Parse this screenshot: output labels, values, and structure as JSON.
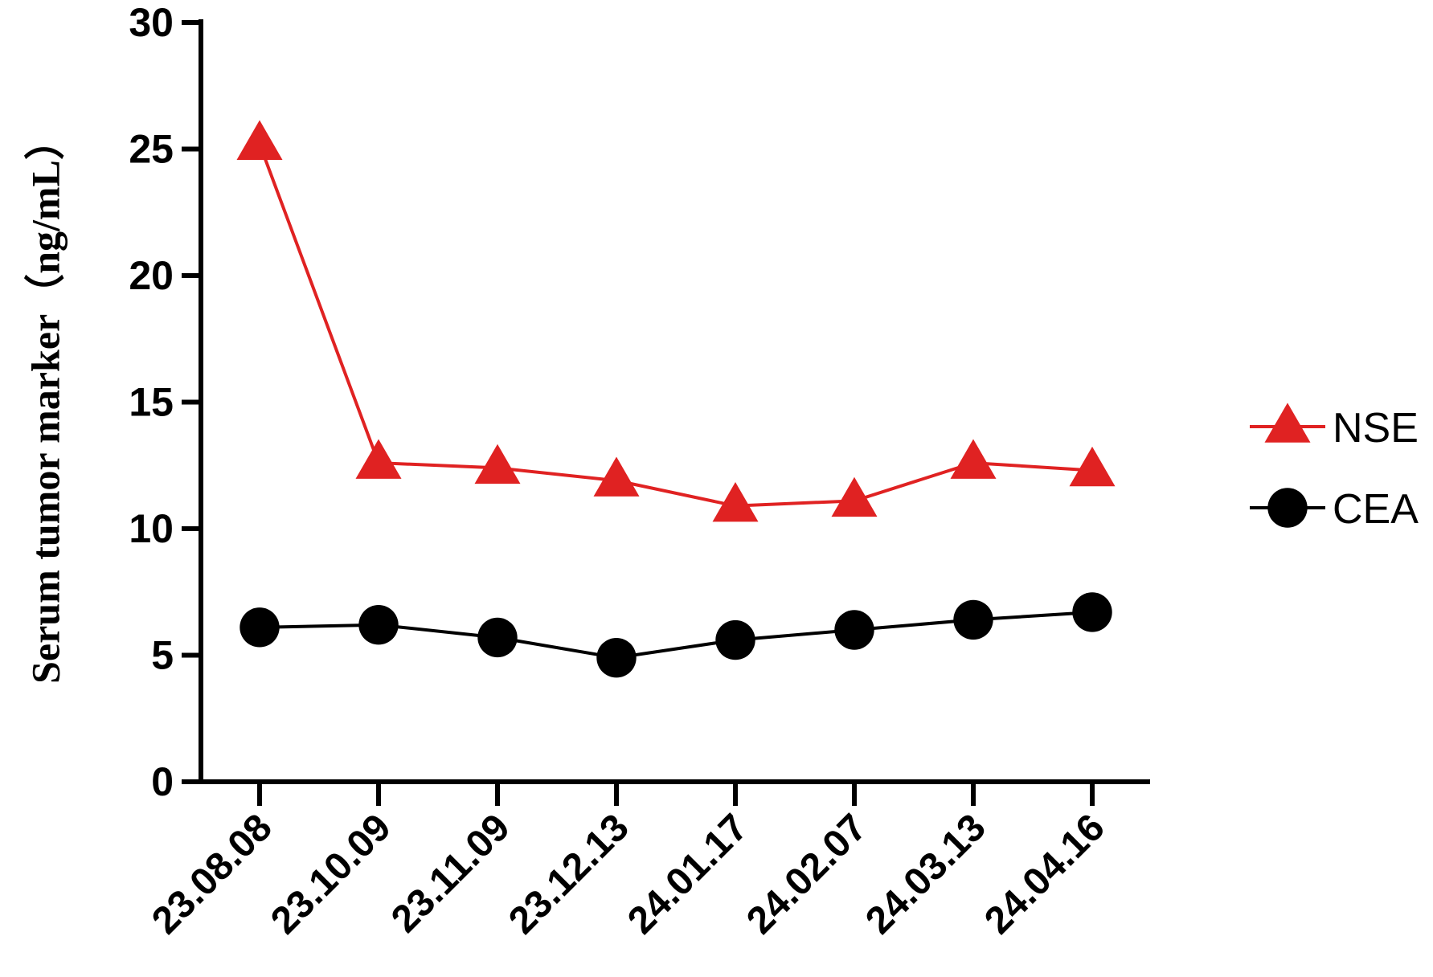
{
  "chart_data": {
    "type": "line",
    "y_label": "Serum tumor marker（ng/mL）",
    "categories": [
      "23.08.08",
      "23.10.09",
      "23.11.09",
      "23.12.13",
      "24.01.17",
      "24.02.07",
      "24.03.13",
      "24.04.16"
    ],
    "series": [
      {
        "name": "NSE",
        "color": "#e02222",
        "marker": "triangle",
        "values": [
          25.2,
          12.6,
          12.4,
          11.9,
          10.9,
          11.1,
          12.6,
          12.3
        ]
      },
      {
        "name": "CEA",
        "color": "#000000",
        "marker": "circle",
        "values": [
          6.1,
          6.2,
          5.7,
          4.9,
          5.6,
          6.0,
          6.4,
          6.7
        ]
      }
    ],
    "ylim": [
      0,
      30
    ],
    "yticks": [
      0,
      5,
      10,
      15,
      20,
      25,
      30
    ],
    "grid": false,
    "legend": "right"
  }
}
